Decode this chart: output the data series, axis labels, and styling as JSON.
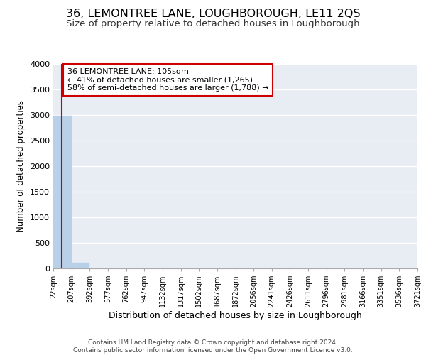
{
  "title": "36, LEMONTREE LANE, LOUGHBOROUGH, LE11 2QS",
  "subtitle": "Size of property relative to detached houses in Loughborough",
  "xlabel": "Distribution of detached houses by size in Loughborough",
  "ylabel": "Number of detached properties",
  "footer_line1": "Contains HM Land Registry data © Crown copyright and database right 2024.",
  "footer_line2": "Contains public sector information licensed under the Open Government Licence v3.0.",
  "bin_edges": [
    22,
    207,
    392,
    577,
    762,
    947,
    1132,
    1317,
    1502,
    1687,
    1872,
    2056,
    2241,
    2426,
    2611,
    2796,
    2981,
    3166,
    3351,
    3536,
    3721
  ],
  "bar_heights": [
    2980,
    110,
    0,
    0,
    0,
    0,
    0,
    0,
    0,
    0,
    0,
    0,
    0,
    0,
    0,
    0,
    0,
    0,
    0,
    0
  ],
  "bar_color": "#b8d0e8",
  "bar_edgecolor": "#b8d0e8",
  "property_size": 105,
  "property_line_color": "#cc0000",
  "annotation_line1": "36 LEMONTREE LANE: 105sqm",
  "annotation_line2": "← 41% of detached houses are smaller (1,265)",
  "annotation_line3": "58% of semi-detached houses are larger (1,788) →",
  "annotation_box_color": "#cc0000",
  "annotation_bg": "#ffffff",
  "ylim": [
    0,
    4000
  ],
  "yticks": [
    0,
    500,
    1000,
    1500,
    2000,
    2500,
    3000,
    3500,
    4000
  ],
  "background_color": "#e8edf4",
  "grid_color": "#ffffff",
  "title_fontsize": 11.5,
  "subtitle_fontsize": 9.5,
  "ylabel_fontsize": 8.5,
  "xlabel_fontsize": 9,
  "annotation_fontsize": 8,
  "tick_fontsize": 7,
  "footer_fontsize": 6.5
}
